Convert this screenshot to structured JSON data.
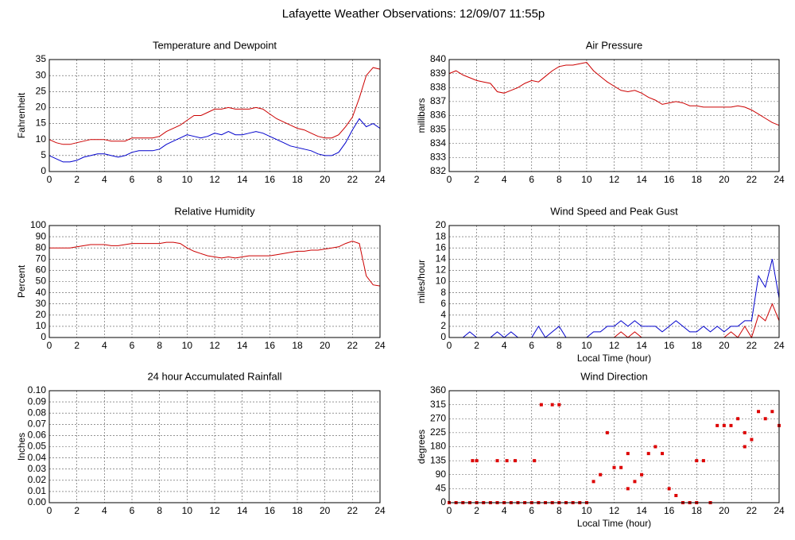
{
  "title": "Lafayette Weather Observations: 12/09/07 11:55p",
  "chart_data": [
    {
      "type": "line",
      "title": "Temperature and Dewpoint",
      "y_label": "Fahrenheit",
      "xlim": [
        0,
        24
      ],
      "xticks": [
        0,
        2,
        4,
        6,
        8,
        10,
        12,
        14,
        16,
        18,
        20,
        22,
        24
      ],
      "ylim": [
        0,
        35
      ],
      "yticks": [
        0,
        5,
        10,
        15,
        20,
        25,
        30,
        35
      ],
      "grid": true,
      "x": [
        0,
        0.5,
        1,
        1.5,
        2,
        2.5,
        3,
        3.5,
        4,
        4.5,
        5,
        5.5,
        6,
        6.5,
        7,
        7.5,
        8,
        8.5,
        9,
        9.5,
        10,
        10.5,
        11,
        11.5,
        12,
        12.5,
        13,
        13.5,
        14,
        14.5,
        15,
        15.5,
        16,
        16.5,
        17,
        17.5,
        18,
        18.5,
        19,
        19.5,
        20,
        20.5,
        21,
        21.5,
        22,
        22.5,
        23,
        23.5,
        24
      ],
      "series": [
        {
          "color": "#cc0000",
          "values": [
            10,
            9,
            8.5,
            8.5,
            9,
            9.5,
            10,
            10,
            10,
            9.5,
            9.5,
            9.5,
            10.5,
            10.5,
            10.5,
            10.5,
            11,
            12.5,
            13.5,
            14.5,
            16,
            17.5,
            17.5,
            18.5,
            19.5,
            19.5,
            20,
            19.5,
            19.5,
            19.5,
            20,
            19.5,
            18,
            16.5,
            15.5,
            14.5,
            13.5,
            13,
            12,
            11,
            10.5,
            10.5,
            11.5,
            14,
            17,
            23,
            30,
            32.5,
            32
          ]
        },
        {
          "color": "#0000cc",
          "values": [
            5,
            4,
            3,
            3,
            3.5,
            4.5,
            5,
            5.5,
            5.5,
            5,
            4.5,
            5,
            6,
            6.5,
            6.5,
            6.5,
            7,
            8.5,
            9.5,
            10.5,
            11.5,
            11,
            10.5,
            11,
            12,
            11.5,
            12.5,
            11.5,
            11.5,
            12,
            12.5,
            12,
            11,
            10,
            9,
            8,
            7.5,
            7,
            6.5,
            5.5,
            5,
            5,
            6,
            9,
            13,
            16.5,
            14,
            15,
            13.5
          ]
        }
      ]
    },
    {
      "type": "line",
      "title": "Air Pressure",
      "y_label": "millibars",
      "xlim": [
        0,
        24
      ],
      "xticks": [
        0,
        2,
        4,
        6,
        8,
        10,
        12,
        14,
        16,
        18,
        20,
        22,
        24
      ],
      "ylim": [
        832,
        840
      ],
      "yticks": [
        832,
        833,
        834,
        835,
        836,
        837,
        838,
        839,
        840
      ],
      "grid": true,
      "x": [
        0,
        0.5,
        1,
        1.5,
        2,
        2.5,
        3,
        3.5,
        4,
        4.5,
        5,
        5.5,
        6,
        6.5,
        7,
        7.5,
        8,
        8.5,
        9,
        9.5,
        10,
        10.5,
        11,
        11.5,
        12,
        12.5,
        13,
        13.5,
        14,
        14.5,
        15,
        15.5,
        16,
        16.5,
        17,
        17.5,
        18,
        18.5,
        19,
        19.5,
        20,
        20.5,
        21,
        21.5,
        22,
        22.5,
        23,
        23.5,
        24
      ],
      "series": [
        {
          "color": "#cc0000",
          "values": [
            839,
            839.2,
            838.9,
            838.7,
            838.5,
            838.4,
            838.3,
            837.7,
            837.6,
            837.8,
            838,
            838.3,
            838.5,
            838.4,
            838.8,
            839.2,
            839.5,
            839.6,
            839.6,
            839.7,
            839.8,
            839.2,
            838.8,
            838.4,
            838.1,
            837.8,
            837.7,
            837.8,
            837.6,
            837.3,
            837.1,
            836.8,
            836.9,
            837,
            836.9,
            836.7,
            836.7,
            836.6,
            836.6,
            836.6,
            836.6,
            836.6,
            836.7,
            836.6,
            836.4,
            836.1,
            835.8,
            835.5,
            835.3
          ]
        }
      ]
    },
    {
      "type": "line",
      "title": "Relative Humidity",
      "y_label": "Percent",
      "xlim": [
        0,
        24
      ],
      "xticks": [
        0,
        2,
        4,
        6,
        8,
        10,
        12,
        14,
        16,
        18,
        20,
        22,
        24
      ],
      "ylim": [
        0,
        100
      ],
      "yticks": [
        0,
        10,
        20,
        30,
        40,
        50,
        60,
        70,
        80,
        90,
        100
      ],
      "grid": true,
      "x": [
        0,
        0.5,
        1,
        1.5,
        2,
        2.5,
        3,
        3.5,
        4,
        4.5,
        5,
        5.5,
        6,
        6.5,
        7,
        7.5,
        8,
        8.5,
        9,
        9.5,
        10,
        10.5,
        11,
        11.5,
        12,
        12.5,
        13,
        13.5,
        14,
        14.5,
        15,
        15.5,
        16,
        16.5,
        17,
        17.5,
        18,
        18.5,
        19,
        19.5,
        20,
        20.5,
        21,
        21.5,
        22,
        22.5,
        23,
        23.5,
        24
      ],
      "series": [
        {
          "color": "#cc0000",
          "values": [
            80,
            80,
            80,
            80,
            81,
            82,
            83,
            83,
            83,
            82,
            82,
            83,
            84,
            84,
            84,
            84,
            84,
            85,
            85,
            84,
            80,
            77,
            75,
            73,
            72,
            71,
            72,
            71,
            72,
            73,
            73,
            73,
            73,
            74,
            75,
            76,
            77,
            77,
            78,
            78,
            79,
            80,
            81,
            84,
            86,
            84,
            55,
            47,
            46
          ]
        }
      ]
    },
    {
      "type": "line",
      "title": "Wind Speed and Peak Gust",
      "y_label": "miles/hour",
      "x_label": "Local Time (hour)",
      "xlim": [
        0,
        24
      ],
      "xticks": [
        0,
        2,
        4,
        6,
        8,
        10,
        12,
        14,
        16,
        18,
        20,
        22,
        24
      ],
      "ylim": [
        0,
        20
      ],
      "yticks": [
        0,
        2,
        4,
        6,
        8,
        10,
        12,
        14,
        16,
        18,
        20
      ],
      "grid": true,
      "x": [
        0,
        0.5,
        1,
        1.5,
        2,
        2.5,
        3,
        3.5,
        4,
        4.5,
        5,
        5.5,
        6,
        6.5,
        7,
        7.5,
        8,
        8.5,
        9,
        9.5,
        10,
        10.5,
        11,
        11.5,
        12,
        12.5,
        13,
        13.5,
        14,
        14.5,
        15,
        15.5,
        16,
        16.5,
        17,
        17.5,
        18,
        18.5,
        19,
        19.5,
        20,
        20.5,
        21,
        21.5,
        22,
        22.5,
        23,
        23.5,
        24
      ],
      "series": [
        {
          "color": "#0000cc",
          "values": [
            0,
            0,
            0,
            1,
            0,
            0,
            0,
            1,
            0,
            1,
            0,
            0,
            0,
            2,
            0,
            1,
            2,
            0,
            0,
            0,
            0,
            1,
            1,
            2,
            2,
            3,
            2,
            3,
            2,
            2,
            2,
            1,
            2,
            3,
            2,
            1,
            1,
            2,
            1,
            2,
            1,
            2,
            2,
            3,
            3,
            11,
            9,
            14,
            7
          ]
        },
        {
          "color": "#cc0000",
          "values": [
            0,
            0,
            0,
            0,
            0,
            0,
            0,
            0,
            0,
            0,
            0,
            0,
            0,
            0,
            0,
            0,
            0,
            0,
            0,
            0,
            0,
            0,
            0,
            0,
            0,
            1,
            0,
            1,
            0,
            0,
            0,
            0,
            0,
            0,
            0,
            0,
            0,
            0,
            0,
            0,
            0,
            1,
            0,
            2,
            0,
            4,
            3,
            6,
            3
          ]
        }
      ]
    },
    {
      "type": "line",
      "title": "24 hour Accumulated Rainfall",
      "y_label": "Inches",
      "xlim": [
        0,
        24
      ],
      "xticks": [
        0,
        2,
        4,
        6,
        8,
        10,
        12,
        14,
        16,
        18,
        20,
        22,
        24
      ],
      "ylim": [
        0,
        0.1
      ],
      "yticks": [
        {
          "value": 0,
          "label": "0.00"
        },
        {
          "value": 0.01,
          "label": "0.01"
        },
        {
          "value": 0.02,
          "label": "0.02"
        },
        {
          "value": 0.03,
          "label": "0.03"
        },
        {
          "value": 0.04,
          "label": "0.04"
        },
        {
          "value": 0.05,
          "label": "0.05"
        },
        {
          "value": 0.06,
          "label": "0.06"
        },
        {
          "value": 0.07,
          "label": "0.07"
        },
        {
          "value": 0.08,
          "label": "0.08"
        },
        {
          "value": 0.09,
          "label": "0.09"
        },
        {
          "value": 0.1,
          "label": "0.10"
        }
      ],
      "grid": true,
      "x": [
        0,
        24
      ],
      "series": [
        {
          "color": "#cc0000",
          "values": [
            0,
            0
          ]
        }
      ]
    },
    {
      "type": "scatter",
      "title": "Wind Direction",
      "y_label": "degrees",
      "x_label": "Local Time (hour)",
      "xlim": [
        0,
        24
      ],
      "xticks": [
        0,
        2,
        4,
        6,
        8,
        10,
        12,
        14,
        16,
        18,
        20,
        22,
        24
      ],
      "ylim": [
        0,
        360
      ],
      "yticks": [
        0,
        45,
        90,
        135,
        180,
        225,
        270,
        315,
        360
      ],
      "grid": true,
      "color": "#dd0000",
      "x": [
        0,
        0.5,
        1,
        1.5,
        2,
        2.5,
        3,
        3.5,
        4,
        4.5,
        5,
        5.5,
        6,
        6.5,
        7,
        7.5,
        8,
        8.5,
        9,
        9.5,
        10,
        1.7,
        2,
        3.5,
        4.2,
        4.8,
        6.2,
        6.7,
        7.5,
        8,
        10.5,
        11,
        11.5,
        12,
        12.5,
        13,
        13,
        13.5,
        14,
        14.5,
        15,
        15.5,
        16,
        16.5,
        17,
        17.5,
        18,
        18,
        18.5,
        19,
        19.5,
        20,
        20.5,
        21,
        21.5,
        21.5,
        22,
        22.5,
        23,
        23.5,
        24
      ],
      "values": [
        0,
        0,
        0,
        0,
        0,
        0,
        0,
        0,
        0,
        0,
        0,
        0,
        0,
        0,
        0,
        0,
        0,
        0,
        0,
        0,
        0,
        135,
        135,
        135,
        135,
        135,
        135,
        315,
        315,
        315,
        68,
        90,
        225,
        113,
        113,
        158,
        45,
        68,
        90,
        158,
        180,
        158,
        45,
        23,
        0,
        0,
        0,
        135,
        135,
        0,
        248,
        248,
        248,
        270,
        225,
        180,
        203,
        293,
        270,
        293,
        248
      ]
    }
  ]
}
